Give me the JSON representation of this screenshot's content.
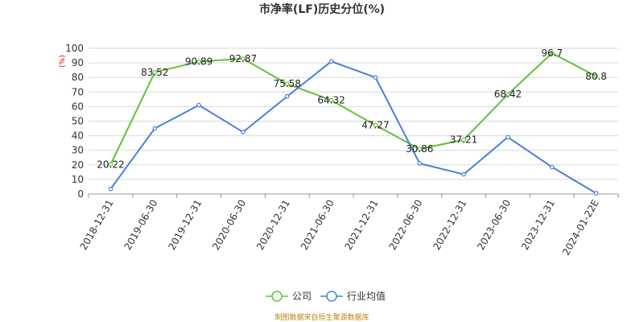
{
  "chart_data": {
    "type": "line",
    "title": "市净率(LF)历史分位(%)",
    "ylabel": "(%)",
    "categories": [
      "2018-12-31",
      "2019-06-30",
      "2019-12-31",
      "2020-06-30",
      "2020-12-31",
      "2021-06-30",
      "2021-12-31",
      "2022-06-30",
      "2022-12-31",
      "2023-06-30",
      "2023-12-31",
      "2024-01-22E"
    ],
    "yticks": [
      0,
      10,
      20,
      30,
      40,
      50,
      60,
      70,
      80,
      90,
      100
    ],
    "ylim": [
      0,
      100
    ],
    "grid": true,
    "legend_position": "bottom-center",
    "series": [
      {
        "name": "公司",
        "color": "#66c03a",
        "values": [
          20.22,
          83.52,
          90.89,
          92.87,
          75.58,
          64.32,
          47.27,
          30.86,
          37.21,
          68.42,
          96.7,
          80.8
        ],
        "labels": [
          "20.22",
          "83.52",
          "90.89",
          "92.87",
          "75.58",
          "64.32",
          "47.27",
          "30.86",
          "37.21",
          "68.42",
          "96.7",
          "80.8"
        ]
      },
      {
        "name": "行业均值",
        "color": "#4a7fdc",
        "values": [
          3.5,
          45,
          61,
          42.5,
          67,
          91,
          80,
          21,
          13.5,
          39,
          18.5,
          0.5
        ]
      }
    ]
  },
  "source_note": "制图数据来自恒生聚源数据库"
}
